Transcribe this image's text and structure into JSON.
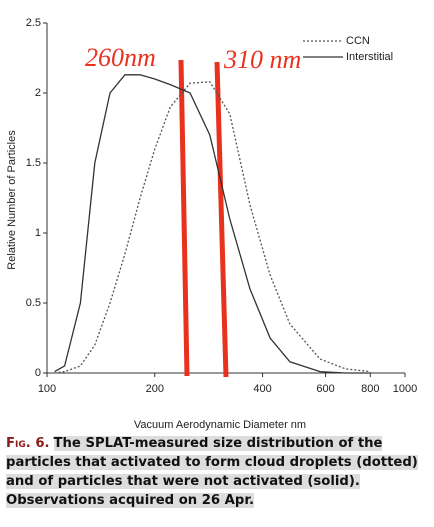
{
  "chart_data": {
    "type": "line",
    "x_label": "Vacuum Aerodynamic Diameter nm",
    "y_label": "Relative Number of Particles",
    "x": [
      105,
      112,
      124,
      136,
      150,
      165,
      182,
      200,
      221,
      251,
      285,
      324,
      369,
      420,
      477,
      579,
      681,
      800
    ],
    "series": [
      {
        "name": "CCN",
        "color": "#555555",
        "dash": true,
        "values": [
          0,
          0.01,
          0.05,
          0.2,
          0.5,
          0.85,
          1.25,
          1.6,
          1.9,
          2.07,
          2.08,
          1.85,
          1.2,
          0.7,
          0.35,
          0.1,
          0.03,
          0.01
        ]
      },
      {
        "name": "Interstitial",
        "color": "#333333",
        "dash": false,
        "values": [
          0.01,
          0.05,
          0.5,
          1.5,
          2.0,
          2.13,
          2.13,
          2.1,
          2.06,
          2.0,
          1.7,
          1.1,
          0.6,
          0.25,
          0.08,
          0.01,
          0,
          0
        ]
      }
    ],
    "xlim": [
      100,
      1000
    ],
    "xlog": true,
    "xticks": [
      100,
      200,
      400,
      600,
      800,
      1000
    ],
    "ylim": [
      0,
      2.5
    ],
    "yticks": [
      0,
      0.5,
      1,
      1.5,
      2,
      2.5
    ],
    "legend": "upper right",
    "annotations": [
      "260nm",
      "310 nm"
    ],
    "caption": {
      "label": "Fig. 6.",
      "text": "The SPLAT-measured size distribution of the particles that activated to form cloud droplets (dotted) and of particles that were not activated (solid). Observations acquired on 26 Apr."
    }
  }
}
